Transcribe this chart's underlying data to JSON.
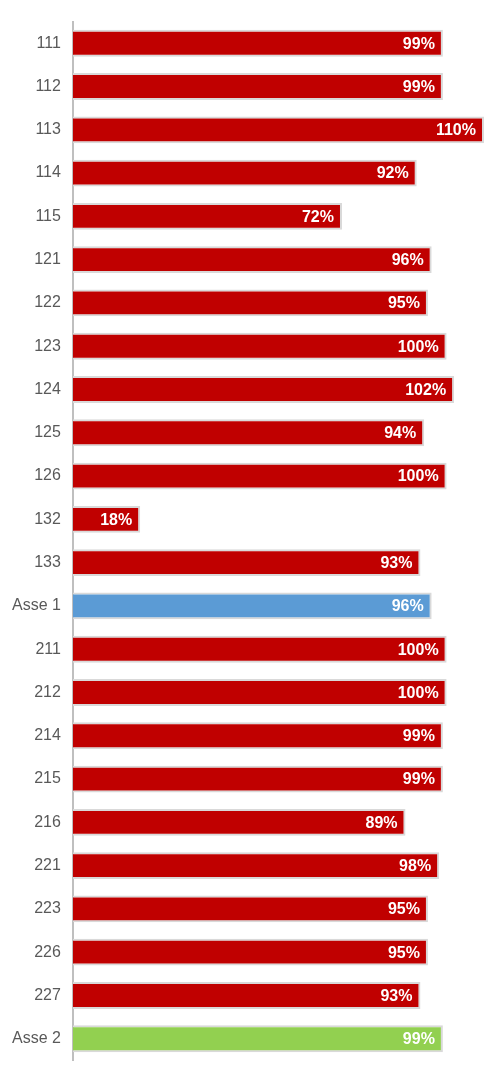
{
  "chart_data": {
    "type": "bar",
    "orientation": "horizontal",
    "categories": [
      "111",
      "112",
      "113",
      "114",
      "115",
      "121",
      "122",
      "123",
      "124",
      "125",
      "126",
      "132",
      "133",
      "Asse 1",
      "211",
      "212",
      "214",
      "215",
      "216",
      "221",
      "223",
      "226",
      "227",
      "Asse 2"
    ],
    "values": [
      99,
      99,
      110,
      92,
      72,
      96,
      95,
      100,
      102,
      94,
      100,
      18,
      93,
      96,
      100,
      100,
      99,
      99,
      89,
      98,
      95,
      95,
      93,
      99
    ],
    "colors": [
      "#c00000",
      "#c00000",
      "#c00000",
      "#c00000",
      "#c00000",
      "#c00000",
      "#c00000",
      "#c00000",
      "#c00000",
      "#c00000",
      "#c00000",
      "#c00000",
      "#c00000",
      "#5b9bd5",
      "#c00000",
      "#c00000",
      "#c00000",
      "#c00000",
      "#c00000",
      "#c00000",
      "#c00000",
      "#c00000",
      "#c00000",
      "#92d050"
    ],
    "value_labels": [
      "99%",
      "99%",
      "110%",
      "92%",
      "72%",
      "96%",
      "95%",
      "100%",
      "102%",
      "94%",
      "100%",
      "18%",
      "93%",
      "96%",
      "100%",
      "100%",
      "99%",
      "99%",
      "89%",
      "98%",
      "95%",
      "95%",
      "93%",
      "99%"
    ],
    "grid": false,
    "legend": false
  }
}
